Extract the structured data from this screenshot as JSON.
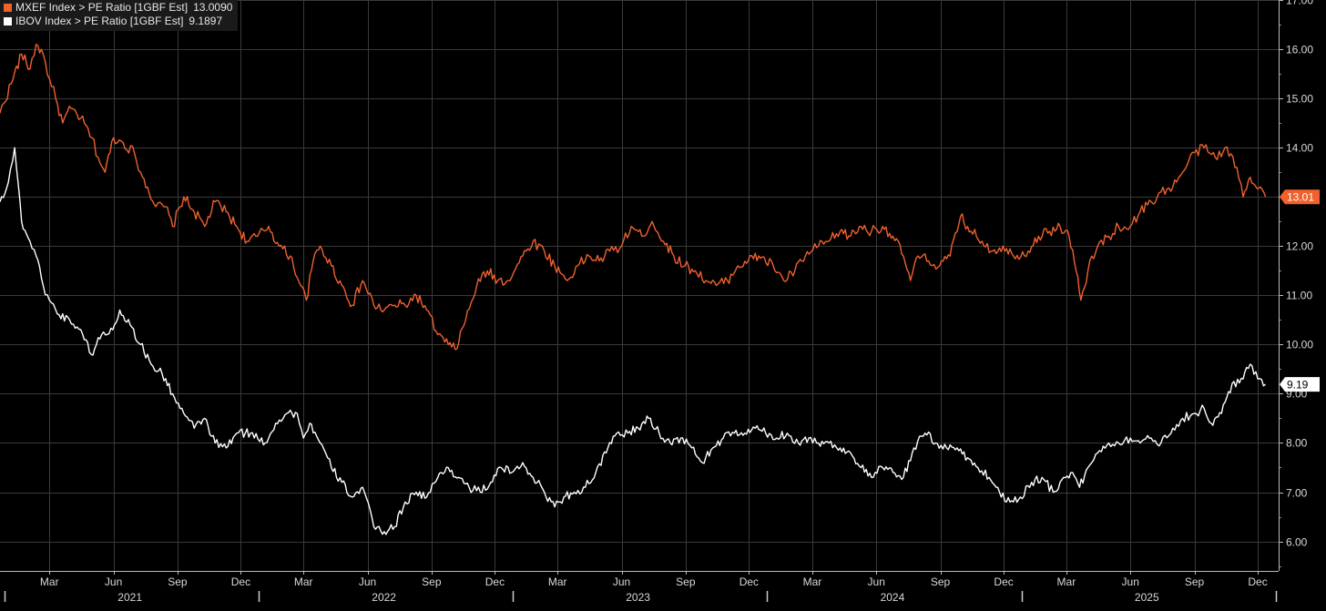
{
  "legend": [
    {
      "label": "MXEF Index > PE Ratio [1GBF Est]",
      "value": "13.0090",
      "color": "#f0612e"
    },
    {
      "label": "IBOV Index > PE Ratio [1GBF Est]",
      "value": "9.1897",
      "color": "#ffffff"
    }
  ],
  "chart_data": {
    "type": "line",
    "ylim": [
      5.4,
      17.0
    ],
    "yticks": [
      "6.00",
      "7.00",
      "8.00",
      "9.00",
      "10.00",
      "11.00",
      "12.00",
      "13.00",
      "14.00",
      "15.00",
      "16.00",
      "17.00"
    ],
    "x_range": [
      "2020-12-20",
      "2025-12-31"
    ],
    "month_ticks": [
      "Mar",
      "Jun",
      "Sep",
      "Dec",
      "Mar",
      "Jun",
      "Sep",
      "Dec",
      "Mar",
      "Jun",
      "Sep",
      "Dec",
      "Mar",
      "Jun",
      "Sep",
      "Dec",
      "Mar",
      "Jun",
      "Sep",
      "Dec"
    ],
    "year_labels": [
      "2021",
      "2022",
      "2023",
      "2024",
      "2025"
    ],
    "grid": true,
    "legend_position": "top-left",
    "series": [
      {
        "name": "MXEF Index > PE Ratio [1GBF Est]",
        "color": "#f0612e",
        "last_label": "13.01",
        "points": [
          [
            "2020-12-20",
            14.7
          ],
          [
            "2021-01-05",
            15.3
          ],
          [
            "2021-01-20",
            15.9
          ],
          [
            "2021-02-01",
            15.6
          ],
          [
            "2021-02-10",
            16.1
          ],
          [
            "2021-02-20",
            15.9
          ],
          [
            "2021-03-01",
            15.4
          ],
          [
            "2021-03-10",
            15.0
          ],
          [
            "2021-03-20",
            14.5
          ],
          [
            "2021-04-01",
            14.8
          ],
          [
            "2021-04-15",
            14.6
          ],
          [
            "2021-05-01",
            14.2
          ],
          [
            "2021-05-10",
            13.8
          ],
          [
            "2021-05-20",
            13.5
          ],
          [
            "2021-06-01",
            14.2
          ],
          [
            "2021-06-15",
            14.1
          ],
          [
            "2021-07-01",
            13.9
          ],
          [
            "2021-07-10",
            13.5
          ],
          [
            "2021-07-20",
            13.2
          ],
          [
            "2021-08-01",
            12.8
          ],
          [
            "2021-08-15",
            12.8
          ],
          [
            "2021-08-25",
            12.4
          ],
          [
            "2021-09-10",
            13.0
          ],
          [
            "2021-09-25",
            12.7
          ],
          [
            "2021-10-10",
            12.4
          ],
          [
            "2021-10-25",
            12.9
          ],
          [
            "2021-11-10",
            12.7
          ],
          [
            "2021-11-25",
            12.4
          ],
          [
            "2021-12-10",
            12.1
          ],
          [
            "2021-12-25",
            12.2
          ],
          [
            "2022-01-10",
            12.4
          ],
          [
            "2022-01-25",
            12.0
          ],
          [
            "2022-02-10",
            11.8
          ],
          [
            "2022-02-25",
            11.2
          ],
          [
            "2022-03-05",
            10.9
          ],
          [
            "2022-03-15",
            11.7
          ],
          [
            "2022-03-25",
            12.0
          ],
          [
            "2022-04-10",
            11.6
          ],
          [
            "2022-04-25",
            11.2
          ],
          [
            "2022-05-10",
            10.8
          ],
          [
            "2022-05-25",
            11.3
          ],
          [
            "2022-06-10",
            10.8
          ],
          [
            "2022-06-25",
            10.7
          ],
          [
            "2022-07-10",
            10.8
          ],
          [
            "2022-07-25",
            10.8
          ],
          [
            "2022-08-10",
            11.0
          ],
          [
            "2022-08-25",
            10.7
          ],
          [
            "2022-09-10",
            10.2
          ],
          [
            "2022-09-25",
            10.0
          ],
          [
            "2022-10-05",
            9.9
          ],
          [
            "2022-10-20",
            10.5
          ],
          [
            "2022-11-05",
            11.2
          ],
          [
            "2022-11-20",
            11.5
          ],
          [
            "2022-12-05",
            11.3
          ],
          [
            "2022-12-20",
            11.3
          ],
          [
            "2023-01-10",
            11.8
          ],
          [
            "2023-01-25",
            12.1
          ],
          [
            "2023-02-10",
            11.9
          ],
          [
            "2023-02-25",
            11.6
          ],
          [
            "2023-03-15",
            11.3
          ],
          [
            "2023-03-30",
            11.6
          ],
          [
            "2023-04-15",
            11.8
          ],
          [
            "2023-04-30",
            11.7
          ],
          [
            "2023-05-15",
            11.9
          ],
          [
            "2023-06-01",
            12.0
          ],
          [
            "2023-06-15",
            12.4
          ],
          [
            "2023-06-30",
            12.2
          ],
          [
            "2023-07-15",
            12.5
          ],
          [
            "2023-07-31",
            12.1
          ],
          [
            "2023-08-15",
            11.8
          ],
          [
            "2023-08-31",
            11.6
          ],
          [
            "2023-09-15",
            11.5
          ],
          [
            "2023-09-30",
            11.3
          ],
          [
            "2023-10-15",
            11.2
          ],
          [
            "2023-10-31",
            11.3
          ],
          [
            "2023-11-15",
            11.6
          ],
          [
            "2023-11-30",
            11.7
          ],
          [
            "2023-12-15",
            11.8
          ],
          [
            "2024-01-05",
            11.6
          ],
          [
            "2024-01-20",
            11.3
          ],
          [
            "2024-02-05",
            11.5
          ],
          [
            "2024-02-20",
            11.8
          ],
          [
            "2024-03-10",
            12.0
          ],
          [
            "2024-03-25",
            12.1
          ],
          [
            "2024-04-10",
            12.3
          ],
          [
            "2024-04-25",
            12.2
          ],
          [
            "2024-05-10",
            12.4
          ],
          [
            "2024-05-25",
            12.3
          ],
          [
            "2024-06-10",
            12.4
          ],
          [
            "2024-06-25",
            12.2
          ],
          [
            "2024-07-10",
            11.8
          ],
          [
            "2024-07-20",
            11.3
          ],
          [
            "2024-07-31",
            11.8
          ],
          [
            "2024-08-15",
            11.7
          ],
          [
            "2024-08-31",
            11.6
          ],
          [
            "2024-09-15",
            11.8
          ],
          [
            "2024-09-30",
            12.6
          ],
          [
            "2024-10-15",
            12.3
          ],
          [
            "2024-10-31",
            12.1
          ],
          [
            "2024-11-15",
            11.9
          ],
          [
            "2024-11-30",
            12.0
          ],
          [
            "2024-12-15",
            11.8
          ],
          [
            "2025-01-05",
            11.9
          ],
          [
            "2025-01-20",
            12.2
          ],
          [
            "2025-02-05",
            12.3
          ],
          [
            "2025-02-20",
            12.4
          ],
          [
            "2025-03-05",
            12.2
          ],
          [
            "2025-03-15",
            11.5
          ],
          [
            "2025-03-22",
            10.9
          ],
          [
            "2025-04-01",
            11.5
          ],
          [
            "2025-04-15",
            12.0
          ],
          [
            "2025-05-01",
            12.2
          ],
          [
            "2025-05-15",
            12.4
          ],
          [
            "2025-06-01",
            12.4
          ],
          [
            "2025-06-15",
            12.7
          ],
          [
            "2025-07-01",
            12.9
          ],
          [
            "2025-07-15",
            13.1
          ],
          [
            "2025-08-01",
            13.2
          ],
          [
            "2025-08-15",
            13.5
          ],
          [
            "2025-09-01",
            13.9
          ],
          [
            "2025-09-15",
            14.0
          ],
          [
            "2025-10-01",
            13.8
          ],
          [
            "2025-10-15",
            14.0
          ],
          [
            "2025-11-01",
            13.6
          ],
          [
            "2025-11-10",
            13.0
          ],
          [
            "2025-11-20",
            13.4
          ],
          [
            "2025-12-05",
            13.2
          ],
          [
            "2025-12-12",
            13.0
          ]
        ]
      },
      {
        "name": "IBOV Index > PE Ratio [1GBF Est]",
        "color": "#ffffff",
        "last_label": "9.19",
        "points": [
          [
            "2020-12-20",
            12.9
          ],
          [
            "2021-01-01",
            13.3
          ],
          [
            "2021-01-10",
            14.0
          ],
          [
            "2021-01-20",
            12.5
          ],
          [
            "2021-02-01",
            12.1
          ],
          [
            "2021-02-10",
            11.8
          ],
          [
            "2021-02-20",
            11.2
          ],
          [
            "2021-03-01",
            10.9
          ],
          [
            "2021-03-15",
            10.6
          ],
          [
            "2021-03-30",
            10.5
          ],
          [
            "2021-04-15",
            10.3
          ],
          [
            "2021-04-30",
            9.8
          ],
          [
            "2021-05-15",
            10.2
          ],
          [
            "2021-05-31",
            10.3
          ],
          [
            "2021-06-10",
            10.7
          ],
          [
            "2021-06-25",
            10.4
          ],
          [
            "2021-07-10",
            10.0
          ],
          [
            "2021-07-25",
            9.6
          ],
          [
            "2021-08-10",
            9.4
          ],
          [
            "2021-08-25",
            9.0
          ],
          [
            "2021-09-10",
            8.6
          ],
          [
            "2021-09-25",
            8.3
          ],
          [
            "2021-10-10",
            8.5
          ],
          [
            "2021-10-25",
            8.0
          ],
          [
            "2021-11-10",
            7.9
          ],
          [
            "2021-11-25",
            8.2
          ],
          [
            "2021-12-15",
            8.2
          ],
          [
            "2022-01-05",
            8.0
          ],
          [
            "2022-01-20",
            8.4
          ],
          [
            "2022-02-05",
            8.6
          ],
          [
            "2022-02-20",
            8.6
          ],
          [
            "2022-03-01",
            8.1
          ],
          [
            "2022-03-10",
            8.4
          ],
          [
            "2022-03-25",
            8.0
          ],
          [
            "2022-04-10",
            7.5
          ],
          [
            "2022-04-25",
            7.2
          ],
          [
            "2022-05-10",
            6.9
          ],
          [
            "2022-05-25",
            7.1
          ],
          [
            "2022-06-10",
            6.3
          ],
          [
            "2022-06-25",
            6.2
          ],
          [
            "2022-07-10",
            6.3
          ],
          [
            "2022-07-25",
            6.8
          ],
          [
            "2022-08-10",
            7.0
          ],
          [
            "2022-08-25",
            6.9
          ],
          [
            "2022-09-10",
            7.3
          ],
          [
            "2022-09-25",
            7.5
          ],
          [
            "2022-10-10",
            7.3
          ],
          [
            "2022-10-25",
            7.1
          ],
          [
            "2022-11-10",
            7.0
          ],
          [
            "2022-11-25",
            7.2
          ],
          [
            "2022-12-10",
            7.5
          ],
          [
            "2022-12-25",
            7.4
          ],
          [
            "2023-01-10",
            7.6
          ],
          [
            "2023-01-25",
            7.3
          ],
          [
            "2023-02-10",
            7.0
          ],
          [
            "2023-02-25",
            6.7
          ],
          [
            "2023-03-10",
            6.9
          ],
          [
            "2023-03-25",
            7.0
          ],
          [
            "2023-04-10",
            7.1
          ],
          [
            "2023-04-25",
            7.4
          ],
          [
            "2023-05-10",
            7.8
          ],
          [
            "2023-05-25",
            8.2
          ],
          [
            "2023-06-10",
            8.2
          ],
          [
            "2023-06-25",
            8.3
          ],
          [
            "2023-07-10",
            8.5
          ],
          [
            "2023-07-25",
            8.2
          ],
          [
            "2023-08-10",
            8.0
          ],
          [
            "2023-08-25",
            8.1
          ],
          [
            "2023-09-10",
            7.9
          ],
          [
            "2023-09-25",
            7.6
          ],
          [
            "2023-10-10",
            7.9
          ],
          [
            "2023-10-25",
            8.1
          ],
          [
            "2023-11-10",
            8.2
          ],
          [
            "2023-11-25",
            8.2
          ],
          [
            "2023-12-10",
            8.3
          ],
          [
            "2023-12-25",
            8.2
          ],
          [
            "2024-01-10",
            8.1
          ],
          [
            "2024-01-25",
            8.2
          ],
          [
            "2024-02-10",
            8.0
          ],
          [
            "2024-02-25",
            8.1
          ],
          [
            "2024-03-10",
            8.0
          ],
          [
            "2024-03-25",
            8.0
          ],
          [
            "2024-04-10",
            7.9
          ],
          [
            "2024-04-25",
            7.8
          ],
          [
            "2024-05-10",
            7.5
          ],
          [
            "2024-05-25",
            7.3
          ],
          [
            "2024-06-10",
            7.5
          ],
          [
            "2024-06-25",
            7.4
          ],
          [
            "2024-07-10",
            7.3
          ],
          [
            "2024-07-25",
            7.9
          ],
          [
            "2024-08-10",
            8.2
          ],
          [
            "2024-08-25",
            8.0
          ],
          [
            "2024-09-10",
            7.9
          ],
          [
            "2024-09-25",
            7.9
          ],
          [
            "2024-10-10",
            7.7
          ],
          [
            "2024-10-25",
            7.5
          ],
          [
            "2024-11-10",
            7.3
          ],
          [
            "2024-11-25",
            7.0
          ],
          [
            "2024-12-10",
            6.8
          ],
          [
            "2024-12-25",
            6.9
          ],
          [
            "2025-01-10",
            7.2
          ],
          [
            "2025-01-25",
            7.3
          ],
          [
            "2025-02-10",
            7.0
          ],
          [
            "2025-02-25",
            7.3
          ],
          [
            "2025-03-10",
            7.4
          ],
          [
            "2025-03-20",
            7.1
          ],
          [
            "2025-04-01",
            7.5
          ],
          [
            "2025-04-15",
            7.8
          ],
          [
            "2025-05-01",
            8.0
          ],
          [
            "2025-05-15",
            8.0
          ],
          [
            "2025-06-01",
            8.1
          ],
          [
            "2025-06-15",
            8.0
          ],
          [
            "2025-07-01",
            8.1
          ],
          [
            "2025-07-15",
            8.0
          ],
          [
            "2025-08-01",
            8.3
          ],
          [
            "2025-08-15",
            8.5
          ],
          [
            "2025-09-01",
            8.6
          ],
          [
            "2025-09-15",
            8.7
          ],
          [
            "2025-09-25",
            8.4
          ],
          [
            "2025-10-10",
            8.6
          ],
          [
            "2025-10-25",
            9.2
          ],
          [
            "2025-11-10",
            9.3
          ],
          [
            "2025-11-20",
            9.6
          ],
          [
            "2025-12-01",
            9.3
          ],
          [
            "2025-12-12",
            9.19
          ]
        ]
      }
    ]
  }
}
